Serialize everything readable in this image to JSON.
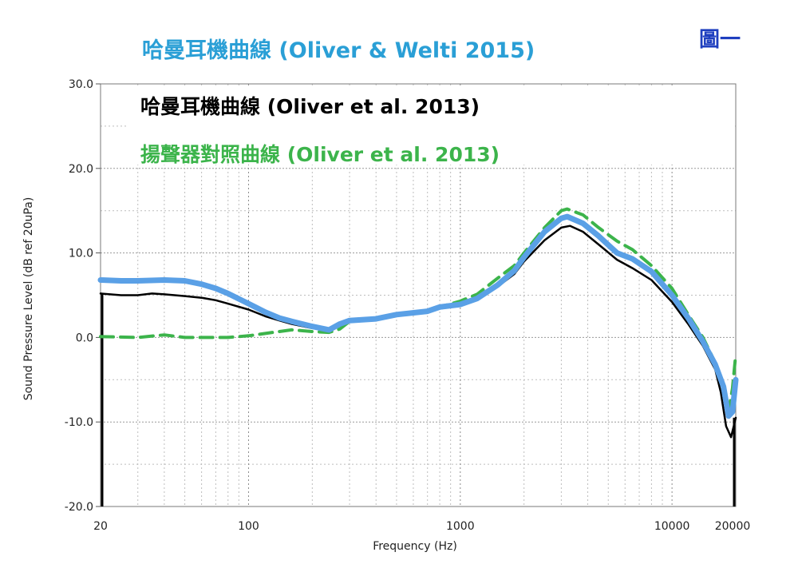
{
  "figure_label": "圖一",
  "chart_data": {
    "type": "line",
    "title_lines": [
      "哈曼耳機曲線 (Oliver & Welti 2015)",
      "哈曼耳機曲線 (Oliver et al. 2013)",
      "揚聲器對照曲線 (Oliver et al. 2013)"
    ],
    "xlabel": "Frequency (Hz)",
    "ylabel": "Sound Pressure Level (dB ref 20uPa)",
    "x_scale": "log",
    "xlim": [
      20,
      20000
    ],
    "ylim": [
      -20,
      30
    ],
    "x_ticks": [
      {
        "value": 20,
        "label": "20"
      },
      {
        "value": 100,
        "label": "100"
      },
      {
        "value": 1000,
        "label": "1000"
      },
      {
        "value": 10000,
        "label": "10000"
      },
      {
        "value": 20000,
        "label": "20000"
      }
    ],
    "y_ticks": [
      {
        "value": 30,
        "label": "30.0"
      },
      {
        "value": 20,
        "label": "20.0"
      },
      {
        "value": 10,
        "label": "10.0"
      },
      {
        "value": 0,
        "label": "0.0"
      },
      {
        "value": -10,
        "label": "-10.0"
      },
      {
        "value": -20,
        "label": "-20.0"
      }
    ],
    "grid": true,
    "colors": {
      "olive_welti_2015": "#5aa0e6",
      "oliver_2013": "#000000",
      "speaker_2013": "#3cb44b",
      "title_2015": "#2a9fd6",
      "title_2013": "#000000",
      "title_speaker": "#3cb44b",
      "figure_label": "#1f3fbf"
    },
    "series": [
      {
        "key": "oliver_2013",
        "style": "solid",
        "points": [
          [
            20,
            5.2
          ],
          [
            25,
            5.0
          ],
          [
            30,
            5.0
          ],
          [
            35,
            5.2
          ],
          [
            40,
            5.1
          ],
          [
            50,
            4.9
          ],
          [
            60,
            4.7
          ],
          [
            70,
            4.4
          ],
          [
            80,
            4.0
          ],
          [
            100,
            3.3
          ],
          [
            120,
            2.5
          ],
          [
            140,
            2.0
          ],
          [
            160,
            1.6
          ],
          [
            200,
            1.1
          ],
          [
            240,
            0.9
          ],
          [
            270,
            1.6
          ],
          [
            300,
            2.0
          ],
          [
            400,
            2.2
          ],
          [
            500,
            2.7
          ],
          [
            700,
            3.0
          ],
          [
            800,
            3.4
          ],
          [
            1000,
            3.8
          ],
          [
            1200,
            4.5
          ],
          [
            1500,
            6.0
          ],
          [
            1800,
            7.5
          ],
          [
            2000,
            9.0
          ],
          [
            2500,
            11.5
          ],
          [
            3000,
            13.0
          ],
          [
            3300,
            13.2
          ],
          [
            3800,
            12.5
          ],
          [
            4500,
            11.0
          ],
          [
            5500,
            9.2
          ],
          [
            6500,
            8.2
          ],
          [
            8000,
            6.8
          ],
          [
            10000,
            4.2
          ],
          [
            12000,
            1.5
          ],
          [
            14000,
            -1.0
          ],
          [
            16000,
            -3.8
          ],
          [
            17000,
            -6.5
          ],
          [
            18000,
            -10.5
          ],
          [
            19000,
            -11.8
          ],
          [
            20000,
            -9.5
          ]
        ]
      },
      {
        "key": "speaker_2013",
        "style": "dashed",
        "points": [
          [
            20,
            0.1
          ],
          [
            30,
            0.0
          ],
          [
            40,
            0.3
          ],
          [
            50,
            0.0
          ],
          [
            80,
            0.0
          ],
          [
            100,
            0.2
          ],
          [
            130,
            0.6
          ],
          [
            160,
            0.9
          ],
          [
            200,
            0.7
          ],
          [
            240,
            0.6
          ],
          [
            270,
            1.0
          ],
          [
            300,
            1.9
          ],
          [
            400,
            2.2
          ],
          [
            500,
            2.7
          ],
          [
            700,
            3.1
          ],
          [
            800,
            3.6
          ],
          [
            1000,
            4.3
          ],
          [
            1200,
            5.1
          ],
          [
            1500,
            7.0
          ],
          [
            1800,
            8.5
          ],
          [
            2000,
            10.0
          ],
          [
            2500,
            13.0
          ],
          [
            3000,
            15.0
          ],
          [
            3200,
            15.2
          ],
          [
            3800,
            14.5
          ],
          [
            4500,
            13.0
          ],
          [
            5500,
            11.4
          ],
          [
            6500,
            10.4
          ],
          [
            8000,
            8.5
          ],
          [
            10000,
            5.8
          ],
          [
            12000,
            2.6
          ],
          [
            14000,
            0.0
          ],
          [
            16000,
            -3.0
          ],
          [
            17500,
            -6.0
          ],
          [
            18500,
            -8.8
          ],
          [
            19300,
            -6.0
          ],
          [
            20000,
            -2.0
          ]
        ]
      },
      {
        "key": "olive_welti_2015",
        "style": "solid",
        "points": [
          [
            20,
            6.8
          ],
          [
            25,
            6.7
          ],
          [
            30,
            6.7
          ],
          [
            40,
            6.8
          ],
          [
            50,
            6.7
          ],
          [
            60,
            6.3
          ],
          [
            70,
            5.8
          ],
          [
            80,
            5.2
          ],
          [
            100,
            4.0
          ],
          [
            120,
            3.0
          ],
          [
            140,
            2.3
          ],
          [
            160,
            1.9
          ],
          [
            200,
            1.3
          ],
          [
            240,
            0.9
          ],
          [
            270,
            1.6
          ],
          [
            300,
            2.0
          ],
          [
            400,
            2.2
          ],
          [
            500,
            2.7
          ],
          [
            700,
            3.1
          ],
          [
            800,
            3.6
          ],
          [
            1000,
            3.9
          ],
          [
            1200,
            4.6
          ],
          [
            1500,
            6.2
          ],
          [
            1800,
            7.9
          ],
          [
            2000,
            9.5
          ],
          [
            2500,
            12.5
          ],
          [
            3000,
            14.1
          ],
          [
            3200,
            14.3
          ],
          [
            3800,
            13.5
          ],
          [
            4500,
            12.0
          ],
          [
            5500,
            10.0
          ],
          [
            6500,
            9.3
          ],
          [
            8000,
            7.8
          ],
          [
            10000,
            5.0
          ],
          [
            12000,
            2.2
          ],
          [
            14000,
            -0.5
          ],
          [
            16000,
            -3.2
          ],
          [
            17500,
            -5.8
          ],
          [
            18500,
            -9.3
          ],
          [
            19300,
            -8.8
          ],
          [
            20000,
            -5.0
          ]
        ]
      }
    ]
  }
}
